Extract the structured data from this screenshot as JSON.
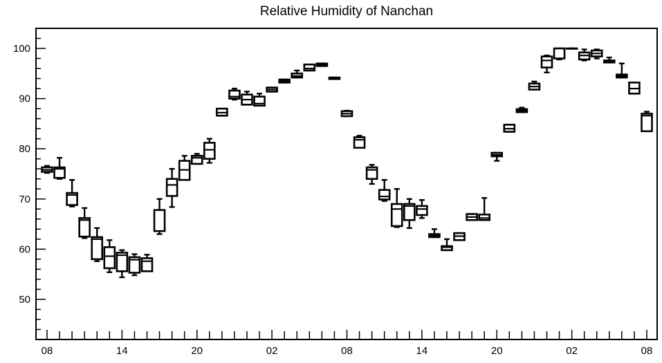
{
  "chart_data": {
    "type": "boxplot",
    "title": "Relative Humidity of Nanchan",
    "xlabel": "",
    "ylabel": "",
    "ylim": [
      42,
      104
    ],
    "xlim": [
      0,
      48
    ],
    "y_ticks": [
      50,
      60,
      70,
      80,
      90,
      100
    ],
    "x_ticks": [
      {
        "x": 0,
        "label": "08"
      },
      {
        "x": 6,
        "label": "14"
      },
      {
        "x": 12,
        "label": "20"
      },
      {
        "x": 18,
        "label": "02"
      },
      {
        "x": 24,
        "label": "08"
      },
      {
        "x": 30,
        "label": "14"
      },
      {
        "x": 36,
        "label": "20"
      },
      {
        "x": 42,
        "label": "02"
      },
      {
        "x": 48,
        "label": "08"
      }
    ],
    "boxes": [
      {
        "x": 0,
        "min": 75.2,
        "q1": 75.4,
        "median": 75.8,
        "q3": 76.3,
        "max": 76.6
      },
      {
        "x": 1,
        "min": 74.0,
        "q1": 74.2,
        "median": 76.0,
        "q3": 76.3,
        "max": 78.2
      },
      {
        "x": 2,
        "min": 68.5,
        "q1": 68.8,
        "median": 70.8,
        "q3": 71.2,
        "max": 73.8
      },
      {
        "x": 3,
        "min": 62.2,
        "q1": 62.5,
        "median": 65.8,
        "q3": 66.2,
        "max": 68.2
      },
      {
        "x": 4,
        "min": 57.6,
        "q1": 58.0,
        "median": 62.0,
        "q3": 62.4,
        "max": 64.2
      },
      {
        "x": 5,
        "min": 55.4,
        "q1": 56.2,
        "median": 58.6,
        "q3": 60.4,
        "max": 61.8
      },
      {
        "x": 6,
        "min": 54.4,
        "q1": 55.6,
        "median": 58.8,
        "q3": 59.3,
        "max": 59.8
      },
      {
        "x": 7,
        "min": 54.8,
        "q1": 55.3,
        "median": 57.9,
        "q3": 58.4,
        "max": 59.0
      },
      {
        "x": 8,
        "min": 55.6,
        "q1": 55.6,
        "median": 57.6,
        "q3": 58.2,
        "max": 58.9
      },
      {
        "x": 9,
        "min": 63.0,
        "q1": 63.6,
        "median": 63.6,
        "q3": 67.8,
        "max": 70.0
      },
      {
        "x": 10,
        "min": 68.4,
        "q1": 70.6,
        "median": 72.8,
        "q3": 74.0,
        "max": 76.0
      },
      {
        "x": 11,
        "min": 73.8,
        "q1": 73.8,
        "median": 75.8,
        "q3": 77.6,
        "max": 78.6
      },
      {
        "x": 12,
        "min": 77.0,
        "q1": 77.0,
        "median": 78.2,
        "q3": 78.6,
        "max": 79.0
      },
      {
        "x": 13,
        "min": 77.2,
        "q1": 78.0,
        "median": 79.8,
        "q3": 81.2,
        "max": 82.0
      },
      {
        "x": 14,
        "min": 86.6,
        "q1": 86.6,
        "median": 87.2,
        "q3": 88.0,
        "max": 88.0
      },
      {
        "x": 15,
        "min": 89.8,
        "q1": 90.0,
        "median": 90.4,
        "q3": 91.6,
        "max": 92.0
      },
      {
        "x": 16,
        "min": 88.8,
        "q1": 88.8,
        "median": 89.8,
        "q3": 90.8,
        "max": 91.4
      },
      {
        "x": 17,
        "min": 88.6,
        "q1": 88.6,
        "median": 89.0,
        "q3": 90.4,
        "max": 91.0
      },
      {
        "x": 18,
        "min": 91.4,
        "q1": 91.4,
        "median": 91.8,
        "q3": 92.2,
        "max": 92.2
      },
      {
        "x": 19,
        "min": 93.2,
        "q1": 93.2,
        "median": 93.5,
        "q3": 93.8,
        "max": 93.8
      },
      {
        "x": 20,
        "min": 94.2,
        "q1": 94.2,
        "median": 94.5,
        "q3": 95.0,
        "max": 95.6
      },
      {
        "x": 21,
        "min": 95.6,
        "q1": 95.6,
        "median": 96.0,
        "q3": 96.8,
        "max": 96.8
      },
      {
        "x": 22,
        "min": 96.5,
        "q1": 96.5,
        "median": 96.8,
        "q3": 97.0,
        "max": 97.0
      },
      {
        "x": 23,
        "min": 93.9,
        "q1": 93.9,
        "median": 94.1,
        "q3": 94.2,
        "max": 94.2
      },
      {
        "x": 24,
        "min": 86.5,
        "q1": 86.5,
        "median": 87.0,
        "q3": 87.5,
        "max": 87.6
      },
      {
        "x": 25,
        "min": 80.2,
        "q1": 80.2,
        "median": 81.8,
        "q3": 82.3,
        "max": 82.6
      },
      {
        "x": 26,
        "min": 73.0,
        "q1": 74.0,
        "median": 75.8,
        "q3": 76.3,
        "max": 76.8
      },
      {
        "x": 27,
        "min": 69.6,
        "q1": 69.9,
        "median": 70.5,
        "q3": 71.8,
        "max": 73.8
      },
      {
        "x": 28,
        "min": 64.4,
        "q1": 64.6,
        "median": 68.0,
        "q3": 69.0,
        "max": 72.0
      },
      {
        "x": 29,
        "min": 64.2,
        "q1": 65.8,
        "median": 68.6,
        "q3": 69.0,
        "max": 70.0
      },
      {
        "x": 30,
        "min": 66.2,
        "q1": 66.8,
        "median": 68.0,
        "q3": 68.6,
        "max": 69.8
      },
      {
        "x": 31,
        "min": 62.4,
        "q1": 62.4,
        "median": 62.7,
        "q3": 63.0,
        "max": 64.0
      },
      {
        "x": 32,
        "min": 59.8,
        "q1": 59.8,
        "median": 60.4,
        "q3": 60.6,
        "max": 62.0
      },
      {
        "x": 33,
        "min": 61.8,
        "q1": 61.8,
        "median": 62.6,
        "q3": 63.2,
        "max": 63.2
      },
      {
        "x": 34,
        "min": 65.8,
        "q1": 65.8,
        "median": 66.4,
        "q3": 67.0,
        "max": 67.0
      },
      {
        "x": 35,
        "min": 65.8,
        "q1": 65.8,
        "median": 66.2,
        "q3": 66.9,
        "max": 70.2
      },
      {
        "x": 36,
        "min": 77.6,
        "q1": 78.5,
        "median": 78.8,
        "q3": 79.2,
        "max": 79.2
      },
      {
        "x": 37,
        "min": 83.4,
        "q1": 83.4,
        "median": 84.0,
        "q3": 84.8,
        "max": 84.8
      },
      {
        "x": 38,
        "min": 87.3,
        "q1": 87.3,
        "median": 87.6,
        "q3": 87.9,
        "max": 88.2
      },
      {
        "x": 39,
        "min": 91.8,
        "q1": 91.8,
        "median": 92.4,
        "q3": 93.0,
        "max": 93.4
      },
      {
        "x": 40,
        "min": 95.2,
        "q1": 96.2,
        "median": 97.6,
        "q3": 98.4,
        "max": 98.6
      },
      {
        "x": 41,
        "min": 97.8,
        "q1": 98.0,
        "median": 100.0,
        "q3": 100.0,
        "max": 100.0
      },
      {
        "x": 42,
        "min": 100.0,
        "q1": 100.0,
        "median": 100.0,
        "q3": 100.0,
        "max": 100.0
      },
      {
        "x": 43,
        "min": 97.6,
        "q1": 97.8,
        "median": 98.6,
        "q3": 99.2,
        "max": 99.8
      },
      {
        "x": 44,
        "min": 98.0,
        "q1": 98.4,
        "median": 99.0,
        "q3": 99.6,
        "max": 99.8
      },
      {
        "x": 45,
        "min": 97.2,
        "q1": 97.2,
        "median": 97.5,
        "q3": 97.6,
        "max": 98.2
      },
      {
        "x": 46,
        "min": 94.2,
        "q1": 94.2,
        "median": 94.5,
        "q3": 94.8,
        "max": 97.0
      },
      {
        "x": 47,
        "min": 91.0,
        "q1": 91.0,
        "median": 92.0,
        "q3": 93.2,
        "max": 93.2
      },
      {
        "x": 48,
        "min": 83.5,
        "q1": 83.5,
        "median": 86.6,
        "q3": 87.0,
        "max": 87.4
      }
    ],
    "grid": false,
    "legend": "none"
  }
}
